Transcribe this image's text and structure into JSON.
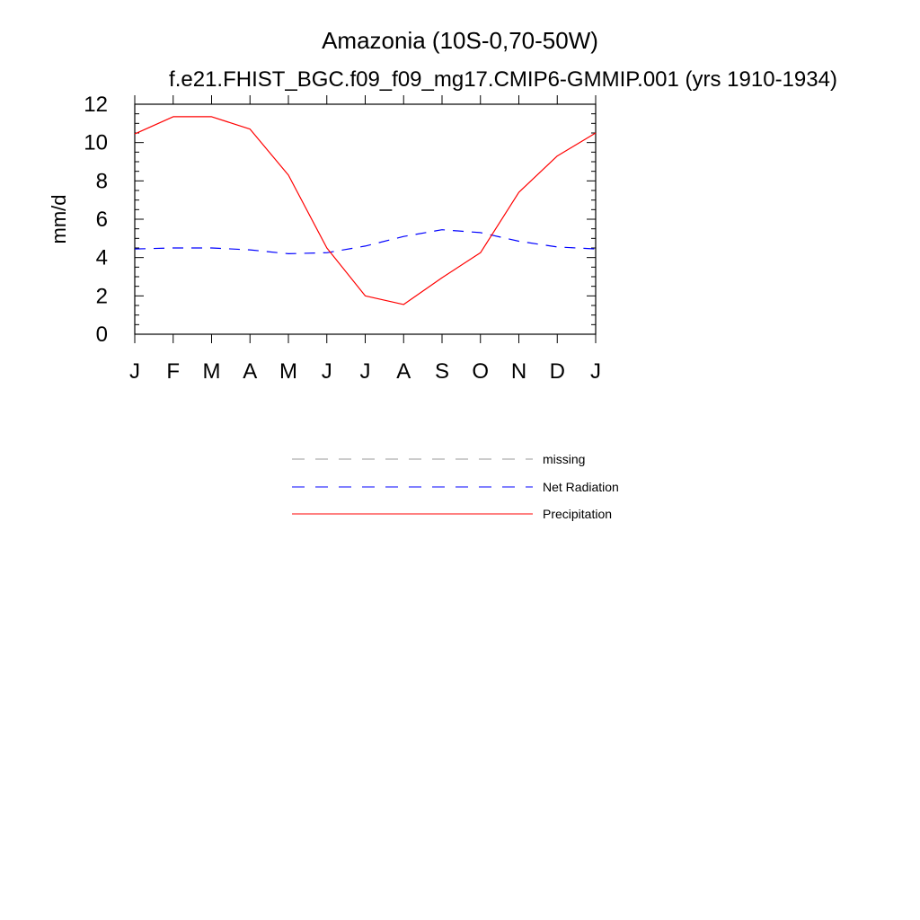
{
  "chart_data": {
    "type": "line",
    "title": "Amazonia (10S-0,70-50W)",
    "subtitle": "f.e21.FHIST_BGC.f09_f09_mg17.CMIP6-GMMIP.001 (yrs 1910-1934)",
    "xlabel": "",
    "ylabel": "mm/d",
    "categories": [
      "J",
      "F",
      "M",
      "A",
      "M",
      "J",
      "J",
      "A",
      "S",
      "O",
      "N",
      "D",
      "J"
    ],
    "ylim": [
      0,
      12
    ],
    "yticks": [
      0,
      2,
      4,
      6,
      8,
      10,
      12
    ],
    "series": [
      {
        "name": "Net Radiation",
        "color": "#0000ff",
        "dash": "dashed",
        "values": [
          4.45,
          4.5,
          4.5,
          4.4,
          4.2,
          4.25,
          4.6,
          5.1,
          5.45,
          5.3,
          4.85,
          4.55,
          4.45
        ]
      },
      {
        "name": "Precipitation",
        "color": "#ff0000",
        "dash": "solid",
        "values": [
          10.45,
          11.35,
          11.35,
          10.7,
          8.3,
          4.5,
          2.0,
          1.55,
          2.95,
          4.25,
          7.4,
          9.3,
          10.5
        ]
      }
    ],
    "legend": {
      "placement": "below",
      "entries": [
        {
          "label": "missing",
          "color": "#999999",
          "dash": "dashed"
        },
        {
          "label": "Net Radiation",
          "color": "#0000ff",
          "dash": "dashed"
        },
        {
          "label": "Precipitation",
          "color": "#ff0000",
          "dash": "solid"
        }
      ]
    }
  }
}
